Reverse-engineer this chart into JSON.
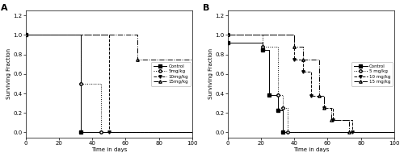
{
  "xlabel": "Time in days",
  "ylabel": "Surviving Fraction",
  "xlim": [
    0,
    100
  ],
  "ylim": [
    -0.05,
    1.25
  ],
  "yticks": [
    0.0,
    0.2,
    0.4,
    0.6,
    0.8,
    1.0,
    1.2
  ],
  "xticks": [
    0,
    20,
    40,
    60,
    80,
    100
  ],
  "A_control": {
    "x": [
      0,
      33,
      33,
      100
    ],
    "y": [
      1.0,
      1.0,
      0.0,
      0.0
    ]
  },
  "A_5mgkg": {
    "x": [
      0,
      33,
      33,
      45,
      45,
      100
    ],
    "y": [
      1.0,
      1.0,
      0.5,
      0.5,
      0.0,
      0.0
    ]
  },
  "A_10mgkg": {
    "x": [
      0,
      50,
      50,
      100
    ],
    "y": [
      1.0,
      1.0,
      0.0,
      0.0
    ]
  },
  "A_15mgkg": {
    "x": [
      0,
      67,
      67,
      100
    ],
    "y": [
      1.0,
      1.0,
      0.75,
      0.75
    ]
  },
  "A_ctrl_markers": {
    "x": [
      0,
      33
    ],
    "y": [
      1.0,
      0.0
    ]
  },
  "A_5_markers": {
    "x": [
      0,
      33,
      45
    ],
    "y": [
      1.0,
      0.5,
      0.0
    ]
  },
  "A_10_markers": {
    "x": [
      0,
      50
    ],
    "y": [
      1.0,
      0.0
    ]
  },
  "A_15_markers": {
    "x": [
      0,
      67
    ],
    "y": [
      1.0,
      0.75
    ]
  },
  "B_control": {
    "x": [
      0,
      21,
      21,
      25,
      25,
      30,
      30,
      33,
      33,
      100
    ],
    "y": [
      0.92,
      0.92,
      0.85,
      0.85,
      0.38,
      0.38,
      0.23,
      0.23,
      0.0,
      0.0
    ]
  },
  "B_5mgkg": {
    "x": [
      0,
      21,
      21,
      30,
      30,
      33,
      33,
      36,
      36,
      100
    ],
    "y": [
      1.0,
      1.0,
      0.88,
      0.88,
      0.38,
      0.38,
      0.25,
      0.25,
      0.0,
      0.0
    ]
  },
  "B_10mgkg": {
    "x": [
      0,
      40,
      40,
      45,
      45,
      50,
      50,
      58,
      58,
      63,
      63,
      75,
      75,
      100
    ],
    "y": [
      1.0,
      1.0,
      0.75,
      0.75,
      0.625,
      0.625,
      0.375,
      0.375,
      0.25,
      0.25,
      0.125,
      0.125,
      0.0,
      0.0
    ]
  },
  "B_15mgkg": {
    "x": [
      0,
      40,
      40,
      45,
      45,
      55,
      55,
      58,
      58,
      62,
      62,
      73,
      73,
      100
    ],
    "y": [
      1.0,
      1.0,
      0.875,
      0.875,
      0.75,
      0.75,
      0.375,
      0.375,
      0.25,
      0.25,
      0.125,
      0.125,
      0.0,
      0.0
    ]
  },
  "B_ctrl_markers": {
    "x": [
      0,
      21,
      25,
      30,
      33
    ],
    "y": [
      0.92,
      0.85,
      0.38,
      0.23,
      0.0
    ]
  },
  "B_5_markers": {
    "x": [
      0,
      21,
      30,
      33,
      36
    ],
    "y": [
      1.0,
      0.88,
      0.38,
      0.25,
      0.0
    ]
  },
  "B_10_markers": {
    "x": [
      0,
      40,
      45,
      50,
      58,
      63,
      75
    ],
    "y": [
      1.0,
      0.75,
      0.625,
      0.375,
      0.25,
      0.125,
      0.0
    ]
  },
  "B_15_markers": {
    "x": [
      0,
      40,
      45,
      55,
      58,
      62,
      73
    ],
    "y": [
      1.0,
      0.875,
      0.75,
      0.375,
      0.25,
      0.125,
      0.0
    ]
  },
  "A_legend_labels": [
    "Control",
    "5mg/kg",
    "10mg/kg",
    "15mg/kg"
  ],
  "B_legend_labels": [
    "Control",
    "5 mg/kg",
    "10 mg/kg",
    "15 mg/kg"
  ]
}
